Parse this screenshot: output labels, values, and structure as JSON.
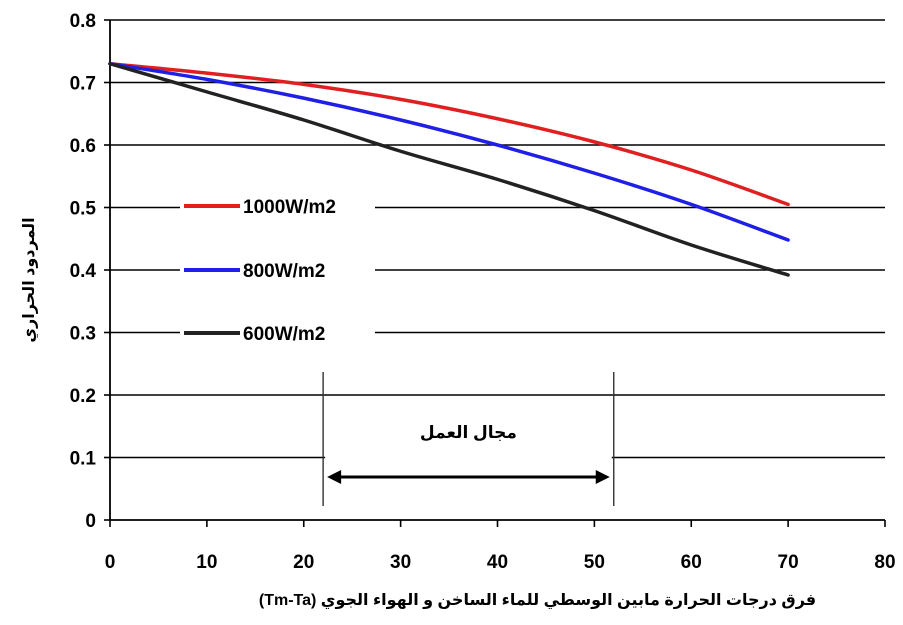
{
  "chart_data": {
    "type": "line",
    "xlabel": "فرق درجات الحرارة مابين الوسطي للماء الساخن و الهواء الجوي (Tm-Ta)",
    "ylabel": "المردود الحراري",
    "xlim": [
      0,
      80
    ],
    "ylim": [
      0,
      0.8
    ],
    "x_ticks": [
      "0",
      "10",
      "20",
      "30",
      "40",
      "50",
      "60",
      "70",
      "80"
    ],
    "y_ticks": [
      "0",
      "0.1",
      "0.2",
      "0.3",
      "0.4",
      "0.5",
      "0.6",
      "0.7",
      "0.8"
    ],
    "grid": "horizontal",
    "series": [
      {
        "name": "1000W/m2",
        "color": "#e02020",
        "x": [
          0,
          10,
          20,
          30,
          40,
          50,
          60,
          70
        ],
        "y": [
          0.73,
          0.715,
          0.697,
          0.673,
          0.642,
          0.605,
          0.56,
          0.505
        ]
      },
      {
        "name": "800W/m2",
        "color": "#1f1fe6",
        "x": [
          0,
          10,
          20,
          30,
          40,
          50,
          60,
          70
        ],
        "y": [
          0.73,
          0.705,
          0.675,
          0.64,
          0.6,
          0.555,
          0.505,
          0.448
        ]
      },
      {
        "name": "600W/m2",
        "color": "#222222",
        "x": [
          0,
          10,
          20,
          30,
          40,
          50,
          60,
          70
        ],
        "y": [
          0.73,
          0.685,
          0.64,
          0.59,
          0.545,
          0.495,
          0.44,
          0.392
        ]
      }
    ],
    "annotation": {
      "label": "مجال العمل",
      "x_start": 22,
      "x_end": 52
    }
  }
}
